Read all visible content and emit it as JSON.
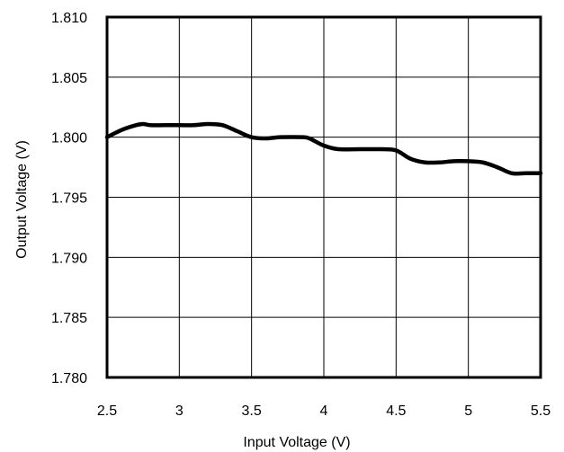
{
  "chart_data": {
    "type": "line",
    "title": "",
    "xlabel": "Input Voltage (V)",
    "ylabel": "Output Voltage (V)",
    "xlim": [
      2.5,
      5.5
    ],
    "ylim": [
      1.78,
      1.81
    ],
    "x_ticks": [
      "2.5",
      "3",
      "3.5",
      "4",
      "4.5",
      "5",
      "5.5"
    ],
    "y_ticks": [
      "1.780",
      "1.785",
      "1.790",
      "1.795",
      "1.800",
      "1.805",
      "1.810"
    ],
    "grid": true,
    "legend": "none",
    "series": [
      {
        "x": [
          2.5,
          2.6,
          2.7,
          2.75,
          2.8,
          2.9,
          3.0,
          3.1,
          3.2,
          3.3,
          3.4,
          3.5,
          3.6,
          3.7,
          3.85,
          3.9,
          4.0,
          4.1,
          4.25,
          4.4,
          4.5,
          4.6,
          4.7,
          4.8,
          4.9,
          5.0,
          5.1,
          5.2,
          5.3,
          5.4,
          5.5
        ],
        "y": [
          1.8,
          1.8006,
          1.801,
          1.8011,
          1.801,
          1.801,
          1.801,
          1.801,
          1.8011,
          1.801,
          1.8005,
          1.8,
          1.7999,
          1.8,
          1.8,
          1.7999,
          1.7993,
          1.799,
          1.799,
          1.799,
          1.7989,
          1.7982,
          1.7979,
          1.7979,
          1.798,
          1.798,
          1.7979,
          1.7975,
          1.797,
          1.797,
          1.797
        ],
        "color": "#000000"
      }
    ]
  }
}
